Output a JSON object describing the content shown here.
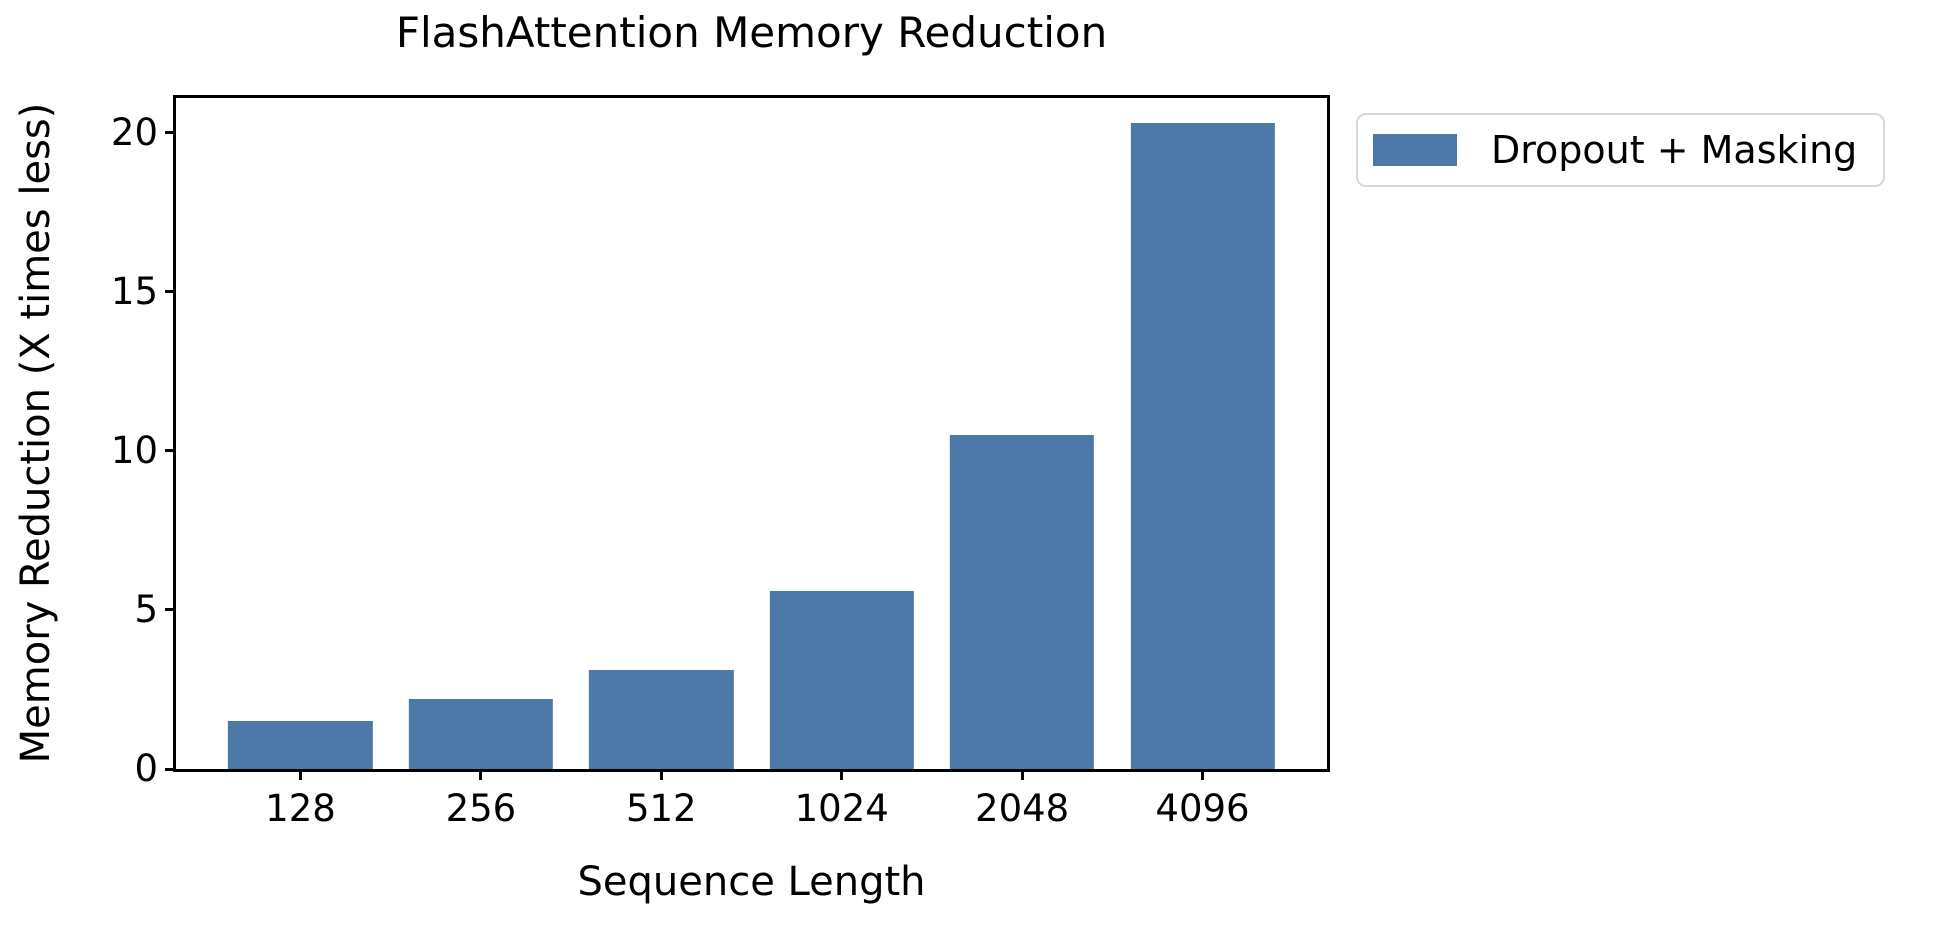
{
  "chart_data": {
    "type": "bar",
    "title": "FlashAttention Memory Reduction",
    "xlabel": "Sequence Length",
    "ylabel": "Memory Reduction (X times less)",
    "categories": [
      "128",
      "256",
      "512",
      "1024",
      "2048",
      "4096"
    ],
    "series": [
      {
        "name": "Dropout + Masking",
        "values": [
          1.5,
          2.2,
          3.1,
          5.6,
          10.5,
          20.3
        ]
      }
    ],
    "yticks": [
      0,
      5,
      10,
      15,
      20
    ],
    "ylim": [
      0,
      21.1
    ],
    "grid": false,
    "legend_position": "upper right, outside plot",
    "bar_color": "#4c79a8",
    "axis_color": "#000000",
    "legend_border_color": "#d8d8d8",
    "background_color": "#ffffff"
  }
}
